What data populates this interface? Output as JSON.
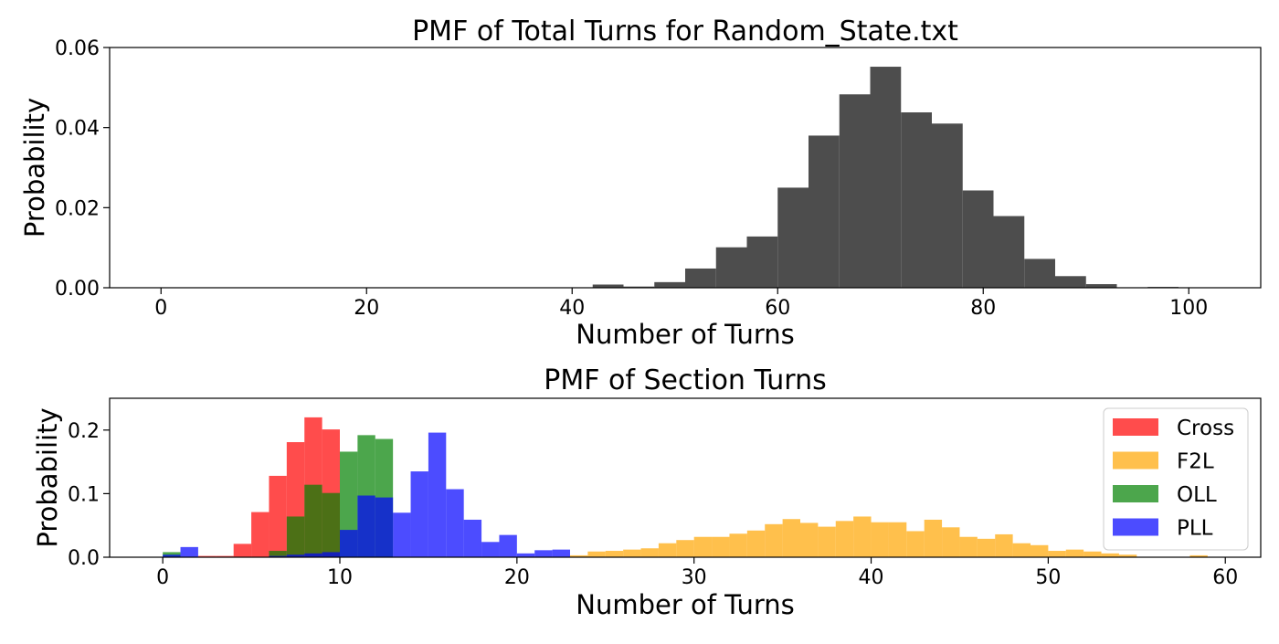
{
  "chart_data": [
    {
      "type": "bar",
      "title": "PMF of Total Turns for Random_State.txt",
      "xlabel": "Number of Turns",
      "ylabel": "Probability",
      "xlim": [
        -5,
        107
      ],
      "ylim": [
        0,
        0.06
      ],
      "xticks": [
        "0",
        "20",
        "40",
        "60",
        "80",
        "100"
      ],
      "yticks": [
        "0.00",
        "0.02",
        "0.04",
        "0.06"
      ],
      "grid": false,
      "series": [
        {
          "color": "#4d4d4d",
          "opacity": 1,
          "bin_edges": [
            42,
            45,
            48,
            51,
            54,
            57,
            60,
            63,
            66,
            69,
            72,
            75,
            78,
            81,
            84,
            87,
            90,
            93,
            96,
            99
          ],
          "values": [
            0.0008,
            0.0003,
            0.0014,
            0.0048,
            0.0101,
            0.0128,
            0.025,
            0.038,
            0.0483,
            0.0552,
            0.0438,
            0.041,
            0.0243,
            0.0179,
            0.0072,
            0.0029,
            0.0009,
            0.0,
            0.0002
          ]
        }
      ]
    },
    {
      "type": "bar",
      "title": "PMF of Section Turns",
      "xlabel": "Number of Turns",
      "ylabel": "Probability",
      "xlim": [
        -3,
        62
      ],
      "ylim": [
        0,
        0.25
      ],
      "xticks": [
        "0",
        "10",
        "20",
        "30",
        "40",
        "50",
        "60"
      ],
      "yticks": [
        "0.0",
        "0.1",
        "0.2"
      ],
      "grid": false,
      "legend": {
        "position": "top-right",
        "entries": [
          "Cross",
          "F2L",
          "OLL",
          "PLL"
        ]
      },
      "series": [
        {
          "name": "Cross",
          "color": "#ff0000",
          "opacity": 0.7,
          "bin_edges": [
            0,
            1,
            2,
            3,
            4,
            5,
            6,
            7,
            8,
            9,
            10
          ],
          "values": [
            0.0,
            0.0,
            0.002,
            0.002,
            0.021,
            0.071,
            0.128,
            0.181,
            0.22,
            0.201
          ]
        },
        {
          "name": "F2L",
          "color": "#ffa500",
          "opacity": 0.7,
          "bin_edges": [
            23,
            24,
            25,
            26,
            27,
            28,
            29,
            30,
            31,
            32,
            33,
            34,
            35,
            36,
            37,
            38,
            39,
            40,
            41,
            42,
            43,
            44,
            45,
            46,
            47,
            48,
            49,
            50,
            51,
            52,
            53,
            54,
            55,
            56,
            57,
            58,
            59
          ],
          "values": [
            0.003,
            0.009,
            0.01,
            0.012,
            0.014,
            0.022,
            0.027,
            0.032,
            0.032,
            0.037,
            0.042,
            0.052,
            0.06,
            0.054,
            0.048,
            0.057,
            0.064,
            0.055,
            0.055,
            0.041,
            0.059,
            0.047,
            0.032,
            0.029,
            0.036,
            0.022,
            0.019,
            0.01,
            0.012,
            0.009,
            0.006,
            0.004,
            0.0,
            0.0,
            0.0,
            0.003
          ]
        },
        {
          "name": "OLL",
          "color": "#008000",
          "opacity": 0.7,
          "bin_edges": [
            0,
            1,
            2,
            3,
            4,
            5,
            6,
            7,
            8,
            9,
            10,
            11,
            12,
            13
          ],
          "values": [
            0.008,
            0.0,
            0.0,
            0.0,
            0.0,
            0.0,
            0.01,
            0.064,
            0.114,
            0.101,
            0.166,
            0.192,
            0.186
          ]
        },
        {
          "name": "PLL",
          "color": "#0000ff",
          "opacity": 0.7,
          "bin_edges": [
            0,
            1,
            2,
            3,
            4,
            5,
            6,
            7,
            8,
            9,
            10,
            11,
            12,
            13,
            14,
            15,
            16,
            17,
            18,
            19,
            20,
            21,
            22,
            23
          ],
          "values": [
            0.004,
            0.016,
            0.0,
            0.0,
            0.0,
            0.0,
            0.002,
            0.004,
            0.006,
            0.008,
            0.043,
            0.097,
            0.094,
            0.07,
            0.135,
            0.196,
            0.107,
            0.059,
            0.024,
            0.035,
            0.006,
            0.011,
            0.012
          ]
        }
      ]
    }
  ]
}
